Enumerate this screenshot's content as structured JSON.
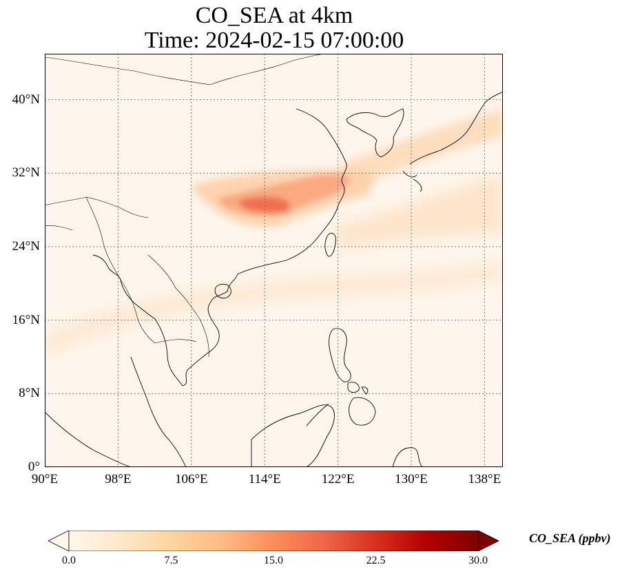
{
  "title": {
    "line1": "CO_SEA at 4km",
    "line2": "Time: 2024-02-15 07:00:00"
  },
  "map": {
    "extent": {
      "lon_min": 90,
      "lon_max": 140,
      "lat_min": 0,
      "lat_max": 45
    },
    "lat_ticks": [
      {
        "value": 0,
        "label": "0°"
      },
      {
        "value": 8,
        "label": "8°N"
      },
      {
        "value": 16,
        "label": "16°N"
      },
      {
        "value": 24,
        "label": "24°N"
      },
      {
        "value": 32,
        "label": "32°N"
      },
      {
        "value": 40,
        "label": "40°N"
      }
    ],
    "lon_ticks": [
      {
        "value": 90,
        "label": "90°E"
      },
      {
        "value": 98,
        "label": "98°E"
      },
      {
        "value": 106,
        "label": "106°E"
      },
      {
        "value": 114,
        "label": "114°E"
      },
      {
        "value": 122,
        "label": "122°E"
      },
      {
        "value": 130,
        "label": "130°E"
      },
      {
        "value": 138,
        "label": "138°E"
      }
    ],
    "gridlines": true,
    "plume_core": {
      "lon": 112.5,
      "lat": 28.5,
      "value": 16
    }
  },
  "colorbar": {
    "label": "CO_SEA (ppbv)",
    "min": 0,
    "max": 30,
    "extend": "both",
    "colormap": "OrRd",
    "ticks": [
      {
        "value": 0,
        "label": "0.0"
      },
      {
        "value": 7.5,
        "label": "7.5"
      },
      {
        "value": 15,
        "label": "15.0"
      },
      {
        "value": 22.5,
        "label": "22.5"
      },
      {
        "value": 30,
        "label": "30.0"
      }
    ],
    "colors": [
      "#fff7ec",
      "#fee8c8",
      "#fdd49e",
      "#fdbb84",
      "#fc8d59",
      "#ef6548",
      "#d7301f",
      "#b30000",
      "#7f0000"
    ]
  }
}
